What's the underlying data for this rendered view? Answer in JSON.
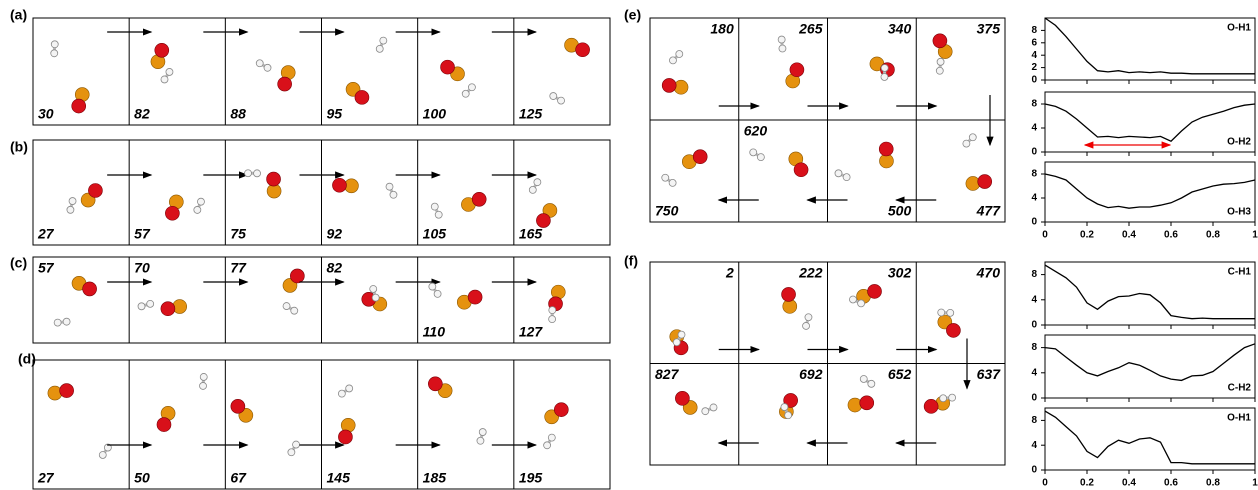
{
  "figure": {
    "panels": [
      {
        "label": "(a)",
        "frames": [
          "30",
          "82",
          "88",
          "95",
          "100",
          "125"
        ]
      },
      {
        "label": "(b)",
        "frames": [
          "27",
          "57",
          "75",
          "92",
          "105",
          "165"
        ]
      },
      {
        "label": "(c)",
        "frames": [
          "57",
          "70",
          "77",
          "82",
          "110",
          "127"
        ]
      },
      {
        "label": "(d)",
        "frames": [
          "27",
          "50",
          "67",
          "145",
          "185",
          "195"
        ]
      },
      {
        "label": "(e)",
        "frames": [
          "180",
          "265",
          "340",
          "375",
          "750",
          "620",
          "500",
          "477"
        ]
      },
      {
        "label": "(f)",
        "frames": [
          "2",
          "222",
          "302",
          "470",
          "827",
          "692",
          "652",
          "637"
        ]
      }
    ]
  },
  "chart_data": [
    {
      "type": "line",
      "annotation": "O-H1",
      "x": [
        0,
        0.05,
        0.1,
        0.15,
        0.2,
        0.25,
        0.3,
        0.35,
        0.4,
        0.45,
        0.5,
        0.55,
        0.6,
        0.65,
        0.7,
        0.75,
        0.8,
        0.85,
        0.9,
        0.95,
        1
      ],
      "series": [
        {
          "color": "#000000",
          "values": [
            10,
            8.8,
            7,
            5,
            3,
            1.5,
            1.3,
            1.5,
            1.2,
            1.3,
            1.2,
            1.3,
            1.1,
            1.1,
            1,
            1,
            1,
            1,
            1,
            1,
            1
          ]
        }
      ],
      "xlim": [
        0,
        1
      ],
      "xticks": [
        0,
        0.2,
        0.4,
        0.6,
        0.8,
        1
      ],
      "ylim": [
        0,
        10
      ],
      "yticks": [
        0,
        2,
        4,
        6,
        8
      ],
      "show_xtick_labels": false
    },
    {
      "type": "line",
      "annotation": "O-H2",
      "x": [
        0,
        0.05,
        0.1,
        0.15,
        0.2,
        0.25,
        0.3,
        0.35,
        0.4,
        0.45,
        0.5,
        0.55,
        0.6,
        0.65,
        0.7,
        0.75,
        0.8,
        0.85,
        0.9,
        0.95,
        1
      ],
      "series": [
        {
          "color": "#000000",
          "values": [
            8,
            7.6,
            6.8,
            5.5,
            4,
            2.5,
            2.6,
            2.4,
            2.6,
            2.5,
            2.4,
            2.6,
            1.8,
            3.5,
            5,
            5.8,
            6.3,
            6.8,
            7.4,
            7.8,
            8
          ]
        }
      ],
      "xlim": [
        0,
        1
      ],
      "xticks": [
        0,
        0.2,
        0.4,
        0.6,
        0.8,
        1
      ],
      "ylim": [
        0,
        10
      ],
      "yticks": [
        0,
        4,
        8
      ],
      "show_xtick_labels": false
    },
    {
      "type": "line",
      "annotation": "O-H3",
      "x": [
        0,
        0.05,
        0.1,
        0.15,
        0.2,
        0.25,
        0.3,
        0.35,
        0.4,
        0.45,
        0.5,
        0.55,
        0.6,
        0.65,
        0.7,
        0.75,
        0.8,
        0.85,
        0.9,
        0.95,
        1
      ],
      "series": [
        {
          "color": "#000000",
          "values": [
            8,
            7.6,
            7,
            5.5,
            4,
            3,
            2.4,
            2.6,
            2.3,
            2.5,
            2.5,
            2.8,
            3.2,
            4,
            5,
            5.5,
            6,
            6.3,
            6.4,
            6.6,
            7
          ]
        }
      ],
      "xlim": [
        0,
        1
      ],
      "xticks": [
        0,
        0.2,
        0.4,
        0.6,
        0.8,
        1
      ],
      "ylim": [
        0,
        10
      ],
      "yticks": [
        0,
        4,
        8
      ],
      "show_xtick_labels": true
    },
    {
      "type": "line",
      "annotation": "C-H1",
      "x": [
        0,
        0.05,
        0.1,
        0.15,
        0.2,
        0.25,
        0.3,
        0.35,
        0.4,
        0.45,
        0.5,
        0.55,
        0.6,
        0.65,
        0.7,
        0.75,
        0.8,
        0.85,
        0.9,
        0.95,
        1
      ],
      "series": [
        {
          "color": "#000000",
          "values": [
            9.5,
            8.5,
            7.5,
            6,
            3.5,
            2.5,
            3.8,
            4.5,
            4.6,
            5,
            4.8,
            3.5,
            1.5,
            1.2,
            1,
            1.1,
            1,
            1,
            1,
            1,
            1
          ]
        }
      ],
      "xlim": [
        0,
        1
      ],
      "xticks": [
        0,
        0.2,
        0.4,
        0.6,
        0.8,
        1
      ],
      "ylim": [
        0,
        10
      ],
      "yticks": [
        0,
        4,
        8
      ],
      "show_xtick_labels": false
    },
    {
      "type": "line",
      "annotation": "C-H2",
      "x": [
        0,
        0.05,
        0.1,
        0.15,
        0.2,
        0.25,
        0.3,
        0.35,
        0.4,
        0.45,
        0.5,
        0.55,
        0.6,
        0.65,
        0.7,
        0.75,
        0.8,
        0.85,
        0.9,
        0.95,
        1
      ],
      "series": [
        {
          "color": "#000000",
          "values": [
            8,
            7.8,
            6.5,
            5.2,
            4,
            3.5,
            4.2,
            4.8,
            5.6,
            5.2,
            4.4,
            3.5,
            3,
            2.8,
            3.5,
            3.6,
            4.2,
            5.5,
            6.8,
            8,
            8.6
          ]
        }
      ],
      "xlim": [
        0,
        1
      ],
      "xticks": [
        0,
        0.2,
        0.4,
        0.6,
        0.8,
        1
      ],
      "ylim": [
        0,
        10
      ],
      "yticks": [
        0,
        4,
        8
      ],
      "show_xtick_labels": false
    },
    {
      "type": "line",
      "annotation": "O-H1",
      "x": [
        0,
        0.05,
        0.1,
        0.15,
        0.2,
        0.25,
        0.3,
        0.35,
        0.4,
        0.45,
        0.5,
        0.55,
        0.6,
        0.65,
        0.7,
        0.75,
        0.8,
        0.85,
        0.9,
        0.95,
        1
      ],
      "series": [
        {
          "color": "#000000",
          "values": [
            9.5,
            8.5,
            7,
            5.5,
            3,
            2,
            3.8,
            4.8,
            4.3,
            5,
            5.2,
            4.5,
            1.2,
            1.2,
            1,
            1,
            1,
            1,
            1,
            1,
            1
          ]
        }
      ],
      "xlim": [
        0,
        1
      ],
      "xticks": [
        0,
        0.2,
        0.4,
        0.6,
        0.8,
        1
      ],
      "ylim": [
        0,
        10
      ],
      "yticks": [
        0,
        4,
        8
      ],
      "show_xtick_labels": true
    }
  ]
}
